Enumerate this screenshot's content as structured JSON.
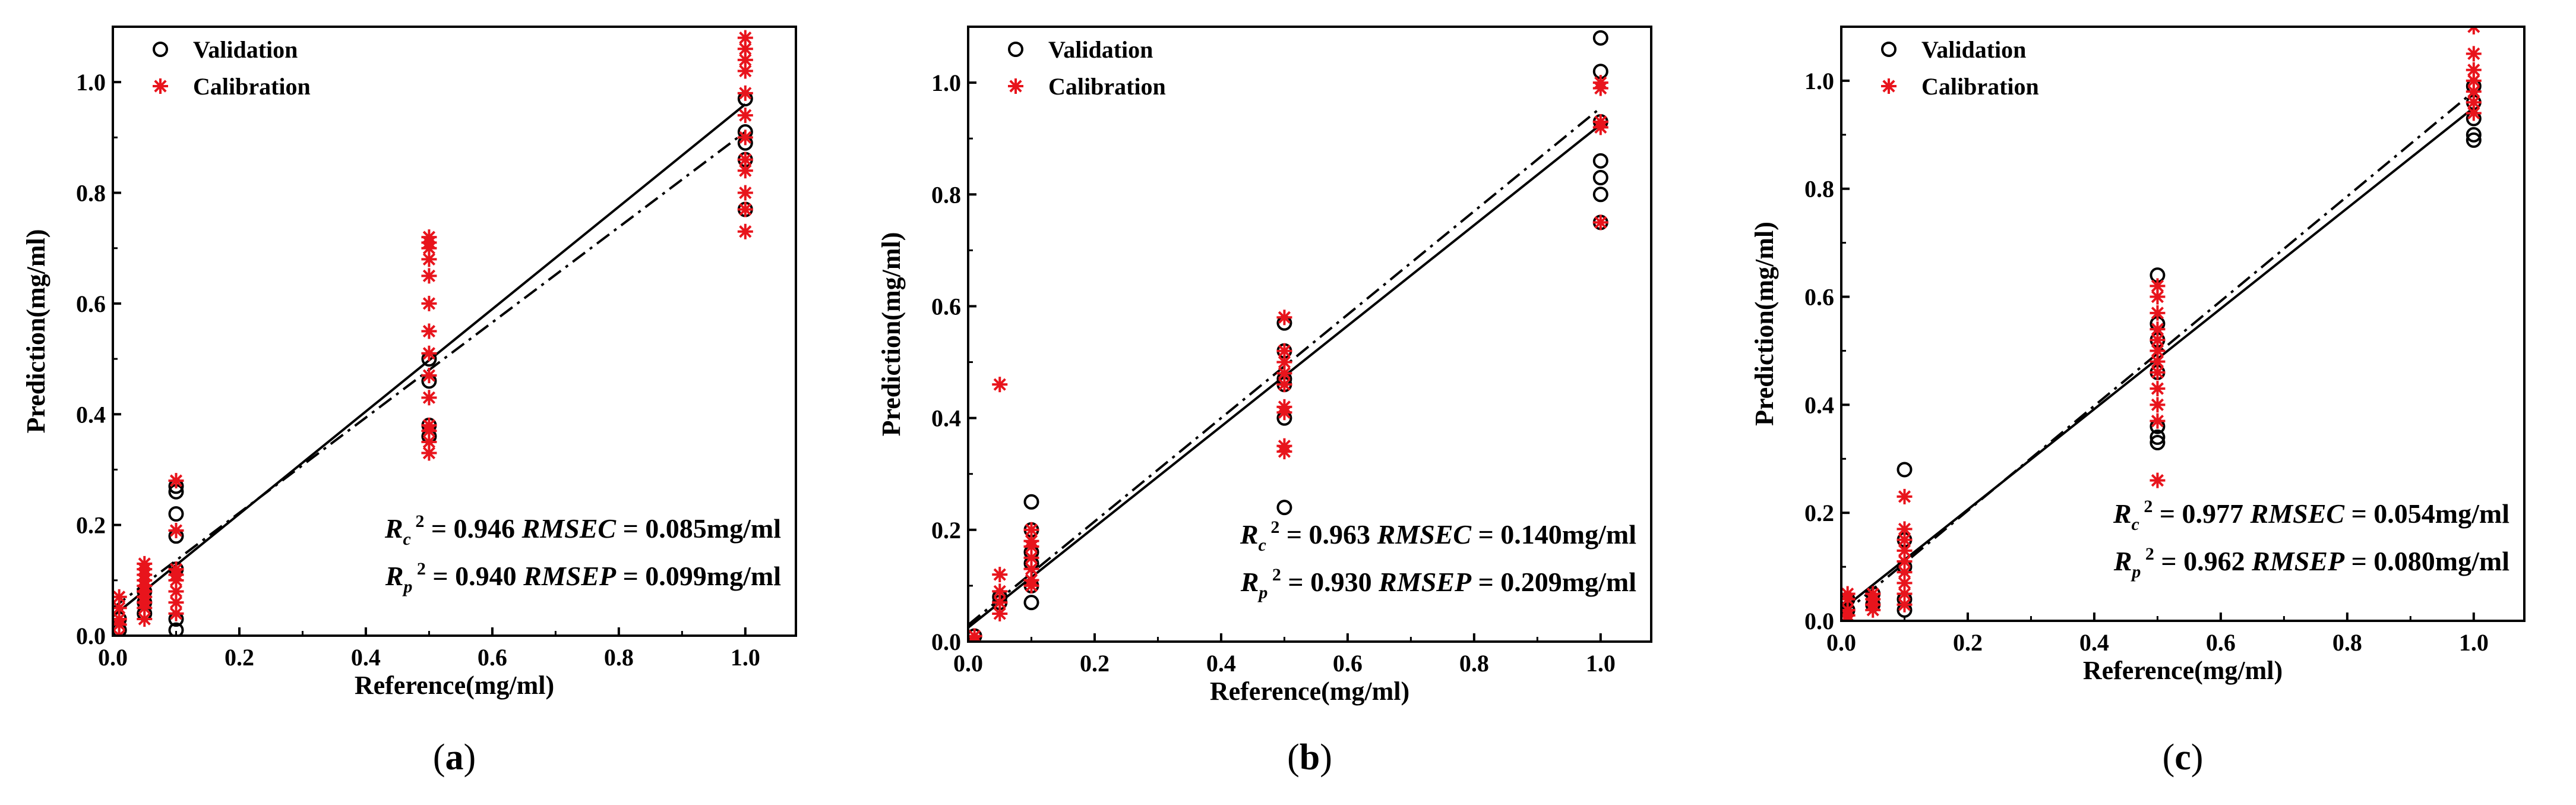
{
  "chart_data": [
    {
      "type": "scatter",
      "panel_label": "(a)",
      "xlabel": "Reference(mg/ml)",
      "ylabel": "Prediction(mg/ml)",
      "xlim": [
        0,
        1.08
      ],
      "ylim": [
        0,
        1.1
      ],
      "xticks": [
        "0.0",
        "0.2",
        "0.4",
        "0.6",
        "0.8",
        "1.0"
      ],
      "yticks": [
        "0.0",
        "0.2",
        "0.4",
        "0.6",
        "0.8",
        "1.0"
      ],
      "legend": [
        "Validation",
        "Calibration"
      ],
      "stats": {
        "calibration": {
          "r2": "0.946",
          "rmse_label": "RMSEC",
          "rmse": "0.085mg/ml"
        },
        "prediction": {
          "r2": "0.940",
          "rmse_label": "RMSEP",
          "rmse": "0.099mg/ml"
        }
      },
      "fit_lines": [
        {
          "style": "solid",
          "x": [
            0,
            1.0
          ],
          "y": [
            0.035,
            0.96
          ]
        },
        {
          "style": "dashdot",
          "x": [
            0,
            1.0
          ],
          "y": [
            0.05,
            0.91
          ]
        }
      ],
      "series": [
        {
          "name": "Validation",
          "marker": "circle",
          "x": [
            0.01,
            0.01,
            0.05,
            0.05,
            0.05,
            0.1,
            0.1,
            0.1,
            0.1,
            0.1,
            0.1,
            0.1,
            0.5,
            0.5,
            0.5,
            0.5,
            1.0,
            1.0,
            1.0,
            1.0,
            1.0
          ],
          "y": [
            0.01,
            0.03,
            0.04,
            0.06,
            0.08,
            0.01,
            0.03,
            0.12,
            0.18,
            0.22,
            0.26,
            0.27,
            0.36,
            0.38,
            0.46,
            0.5,
            0.77,
            0.86,
            0.89,
            0.91,
            0.97
          ]
        },
        {
          "name": "Calibration",
          "marker": "asterisk",
          "x": [
            0.01,
            0.01,
            0.01,
            0.01,
            0.01,
            0.05,
            0.05,
            0.05,
            0.05,
            0.05,
            0.05,
            0.05,
            0.05,
            0.05,
            0.05,
            0.1,
            0.1,
            0.1,
            0.1,
            0.1,
            0.1,
            0.1,
            0.1,
            0.5,
            0.5,
            0.5,
            0.5,
            0.5,
            0.5,
            0.5,
            0.5,
            0.5,
            0.5,
            0.5,
            0.5,
            0.5,
            0.5,
            1.0,
            1.0,
            1.0,
            1.0,
            1.0,
            1.0,
            1.0,
            1.0,
            1.0,
            1.0,
            1.0,
            1.0
          ],
          "y": [
            0.0,
            0.02,
            0.03,
            0.05,
            0.07,
            0.03,
            0.05,
            0.06,
            0.07,
            0.08,
            0.09,
            0.1,
            0.11,
            0.12,
            0.13,
            0.04,
            0.06,
            0.08,
            0.1,
            0.11,
            0.12,
            0.19,
            0.28,
            0.33,
            0.35,
            0.37,
            0.38,
            0.43,
            0.47,
            0.51,
            0.55,
            0.6,
            0.65,
            0.68,
            0.7,
            0.71,
            0.72,
            0.73,
            0.77,
            0.8,
            0.84,
            0.86,
            0.9,
            0.94,
            0.98,
            1.02,
            1.04,
            1.06,
            1.08
          ]
        }
      ]
    },
    {
      "type": "scatter",
      "panel_label": "(b)",
      "xlabel": "Reference(mg/ml)",
      "ylabel": "Prediction(mg/ml)",
      "xlim": [
        0,
        1.08
      ],
      "ylim": [
        0,
        1.1
      ],
      "xticks": [
        "0.0",
        "0.2",
        "0.4",
        "0.6",
        "0.8",
        "1.0"
      ],
      "yticks": [
        "0.0",
        "0.2",
        "0.4",
        "0.6",
        "0.8",
        "1.0"
      ],
      "legend": [
        "Validation",
        "Calibration"
      ],
      "stats": {
        "calibration": {
          "r2": "0.963",
          "rmse_label": "RMSEC",
          "rmse": "0.140mg/ml"
        },
        "prediction": {
          "r2": "0.930",
          "rmse_label": "RMSEP",
          "rmse": "0.209mg/ml"
        }
      },
      "fit_lines": [
        {
          "style": "solid",
          "x": [
            0,
            1.0
          ],
          "y": [
            0.025,
            0.925
          ]
        },
        {
          "style": "dashdot",
          "x": [
            0,
            1.0
          ],
          "y": [
            0.03,
            0.955
          ]
        }
      ],
      "series": [
        {
          "name": "Validation",
          "marker": "circle",
          "x": [
            0.01,
            0.05,
            0.05,
            0.1,
            0.1,
            0.1,
            0.1,
            0.1,
            0.1,
            0.5,
            0.5,
            0.5,
            0.5,
            0.5,
            0.5,
            1.0,
            1.0,
            1.0,
            1.0,
            1.0,
            1.0,
            1.0
          ],
          "y": [
            0.01,
            0.07,
            0.08,
            0.07,
            0.1,
            0.14,
            0.16,
            0.2,
            0.25,
            0.24,
            0.4,
            0.46,
            0.47,
            0.52,
            0.57,
            0.75,
            0.8,
            0.83,
            0.86,
            0.93,
            1.02,
            1.08
          ]
        },
        {
          "name": "Calibration",
          "marker": "asterisk",
          "x": [
            0.01,
            0.01,
            0.05,
            0.05,
            0.05,
            0.05,
            0.05,
            0.1,
            0.1,
            0.1,
            0.1,
            0.1,
            0.1,
            0.1,
            0.5,
            0.5,
            0.5,
            0.5,
            0.5,
            0.5,
            0.5,
            0.5,
            0.5,
            1.0,
            1.0,
            1.0,
            1.0,
            1.0
          ],
          "y": [
            0.0,
            0.01,
            0.05,
            0.07,
            0.09,
            0.12,
            0.46,
            0.1,
            0.11,
            0.13,
            0.15,
            0.17,
            0.18,
            0.2,
            0.34,
            0.35,
            0.41,
            0.42,
            0.46,
            0.48,
            0.5,
            0.52,
            0.58,
            0.75,
            0.92,
            0.93,
            0.99,
            1.0
          ]
        }
      ]
    },
    {
      "type": "scatter",
      "panel_label": "(c)",
      "xlabel": "Reference(mg/ml)",
      "ylabel": "Prediction(mg/ml)",
      "xlim": [
        0,
        1.08
      ],
      "ylim": [
        0,
        1.1
      ],
      "xticks": [
        "0.0",
        "0.2",
        "0.4",
        "0.6",
        "0.8",
        "1.0"
      ],
      "yticks": [
        "0.0",
        "0.2",
        "0.4",
        "0.6",
        "0.8",
        "1.0"
      ],
      "legend": [
        "Validation",
        "Calibration"
      ],
      "stats": {
        "calibration": {
          "r2": "0.977",
          "rmse_label": "RMSEC",
          "rmse": "0.054mg/ml"
        },
        "prediction": {
          "r2": "0.962",
          "rmse_label": "RMSEP",
          "rmse": "0.080mg/ml"
        }
      },
      "fit_lines": [
        {
          "style": "solid",
          "x": [
            0,
            1.0
          ],
          "y": [
            0.02,
            0.95
          ]
        },
        {
          "style": "dashdot",
          "x": [
            0,
            1.0
          ],
          "y": [
            0.01,
            0.98
          ]
        }
      ],
      "series": [
        {
          "name": "Validation",
          "marker": "circle",
          "x": [
            0.01,
            0.01,
            0.05,
            0.05,
            0.1,
            0.1,
            0.1,
            0.1,
            0.1,
            0.5,
            0.5,
            0.5,
            0.5,
            0.5,
            0.5,
            0.5,
            1.0,
            1.0,
            1.0,
            1.0,
            1.0
          ],
          "y": [
            0.02,
            0.04,
            0.03,
            0.05,
            0.02,
            0.04,
            0.1,
            0.15,
            0.28,
            0.33,
            0.34,
            0.36,
            0.46,
            0.52,
            0.55,
            0.64,
            0.89,
            0.9,
            0.93,
            0.96,
            0.99
          ]
        },
        {
          "name": "Calibration",
          "marker": "asterisk",
          "x": [
            0.01,
            0.01,
            0.01,
            0.01,
            0.01,
            0.05,
            0.05,
            0.05,
            0.05,
            0.1,
            0.1,
            0.1,
            0.1,
            0.1,
            0.1,
            0.1,
            0.1,
            0.1,
            0.5,
            0.5,
            0.5,
            0.5,
            0.5,
            0.5,
            0.5,
            0.5,
            0.5,
            0.5,
            0.5,
            0.5,
            1.0,
            1.0,
            1.0,
            1.0,
            1.0,
            1.0,
            1.0
          ],
          "y": [
            0.0,
            0.01,
            0.02,
            0.04,
            0.05,
            0.02,
            0.03,
            0.04,
            0.05,
            0.03,
            0.05,
            0.07,
            0.09,
            0.11,
            0.13,
            0.15,
            0.17,
            0.23,
            0.26,
            0.37,
            0.4,
            0.43,
            0.46,
            0.48,
            0.5,
            0.52,
            0.54,
            0.57,
            0.6,
            0.62,
            0.94,
            0.96,
            0.98,
            1.0,
            1.02,
            1.05,
            1.1
          ]
        }
      ]
    }
  ]
}
